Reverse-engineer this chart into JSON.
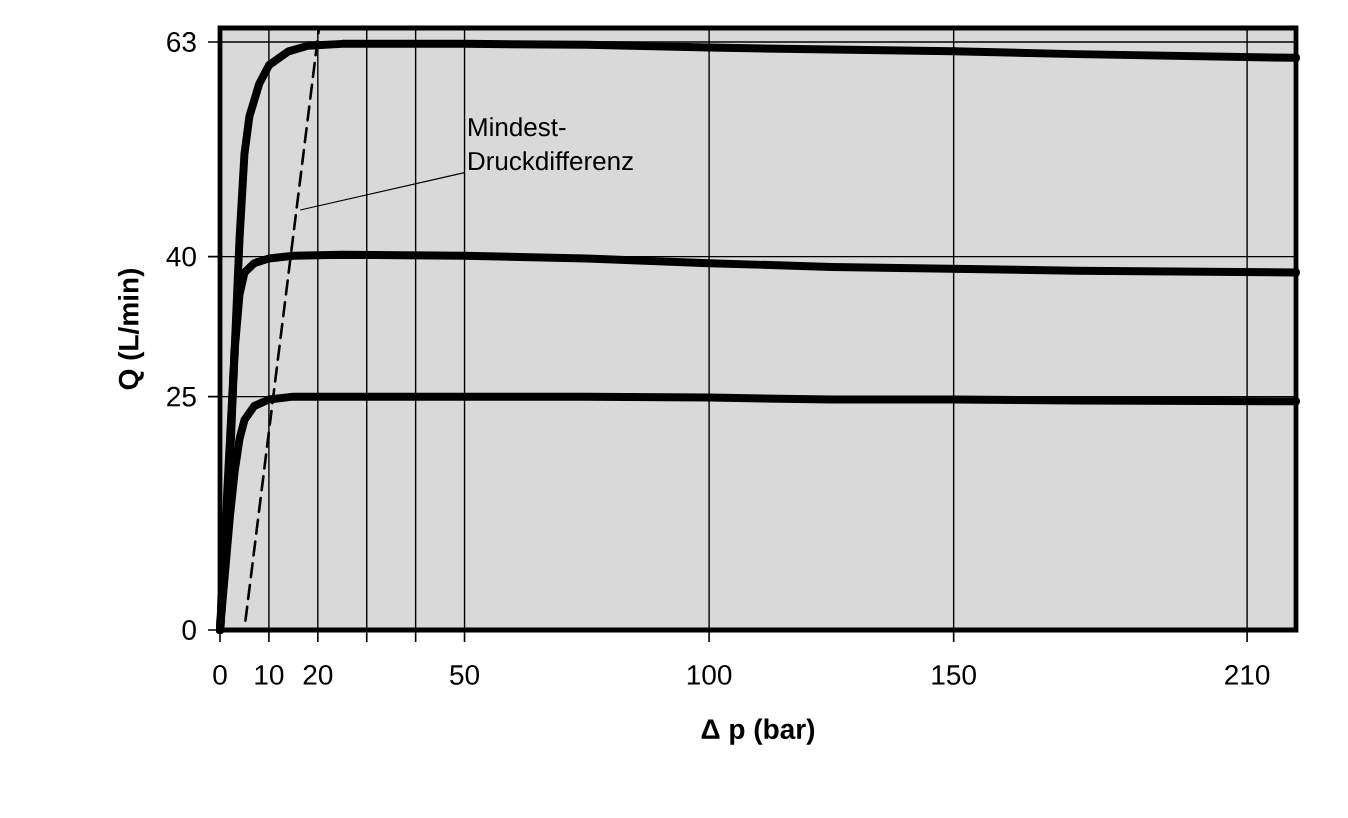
{
  "chart_data": {
    "type": "line",
    "xlabel": "Δ p (bar)",
    "ylabel": "Q (L/min)",
    "xlim": [
      0,
      220
    ],
    "ylim": [
      0,
      64.5
    ],
    "xticks": [
      0,
      10,
      20,
      {
        "value": 30,
        "label": null
      },
      {
        "value": 40,
        "label": null
      },
      50,
      100,
      150,
      210
    ],
    "yticks": [
      0,
      25,
      40,
      63
    ],
    "grid": true,
    "line_style": "solid",
    "marker": "none",
    "series": [
      {
        "color": "#000000",
        "x": [
          0,
          1,
          2,
          3,
          4,
          5,
          6,
          8,
          10,
          14,
          18,
          25,
          50,
          75,
          100,
          125,
          150,
          175,
          220
        ],
        "values": [
          0,
          8,
          17.5,
          30,
          42,
          51,
          55,
          58.5,
          60.5,
          62,
          62.6,
          62.8,
          62.8,
          62.7,
          62.4,
          62.2,
          62,
          61.7,
          61.3
        ]
      },
      {
        "color": "#000000",
        "x": [
          0,
          1,
          2,
          3,
          4,
          5,
          7,
          10,
          15,
          25,
          50,
          75,
          100,
          125,
          150,
          175,
          220
        ],
        "values": [
          0,
          10,
          20,
          30,
          36,
          38.3,
          39.3,
          39.8,
          40.1,
          40.2,
          40.1,
          39.8,
          39.3,
          38.9,
          38.7,
          38.5,
          38.3
        ]
      },
      {
        "color": "#000000",
        "x": [
          0,
          1,
          2,
          3,
          4,
          5,
          7,
          10,
          15,
          25,
          50,
          75,
          100,
          125,
          150,
          175,
          220
        ],
        "values": [
          0,
          6,
          12,
          17,
          20.5,
          22.5,
          24,
          24.7,
          25,
          25,
          25,
          25,
          24.9,
          24.7,
          24.7,
          24.6,
          24.5
        ]
      },
      {
        "color": "#000000",
        "line_style": "dashed",
        "x": [
          5.2,
          20.2
        ],
        "values": [
          1,
          64.3
        ]
      }
    ],
    "annotations": [
      {
        "text": "Mindest-Druckdifferenz",
        "x": 16.4,
        "y": 45
      }
    ]
  }
}
